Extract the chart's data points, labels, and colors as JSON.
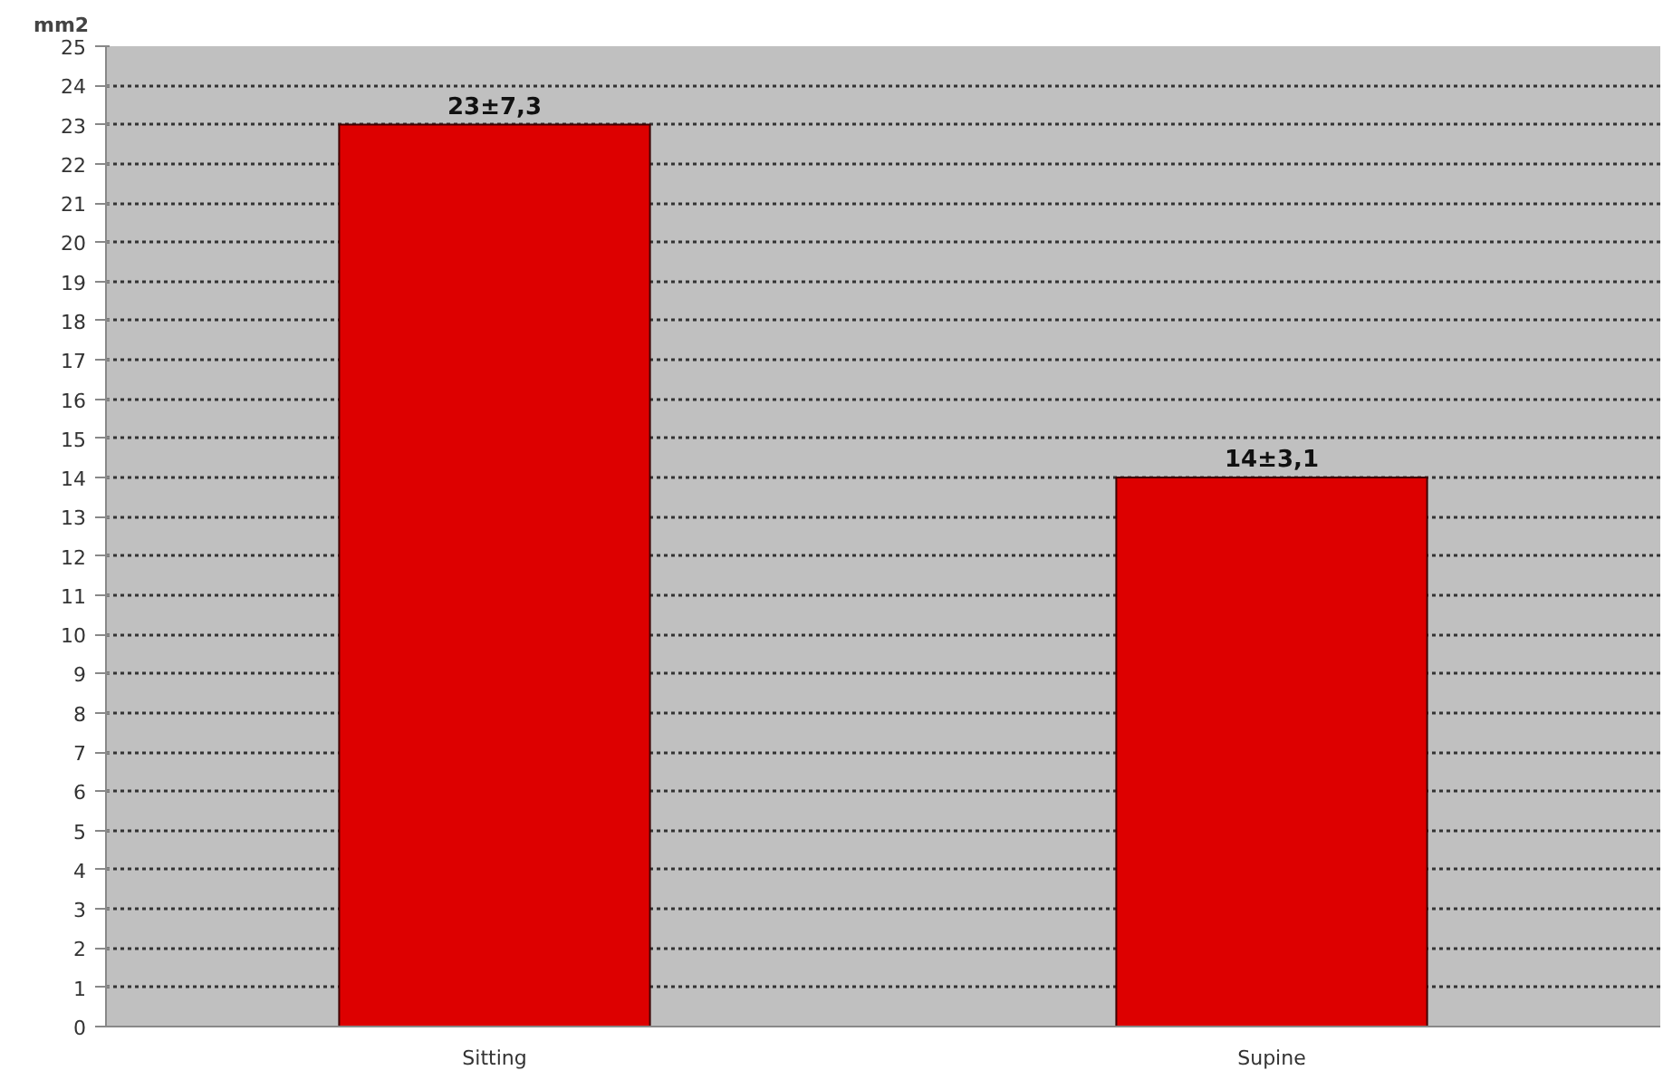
{
  "chart_data": {
    "type": "bar",
    "ylabel": "mm2",
    "categories": [
      "Sitting",
      "Supine"
    ],
    "values": [
      23,
      14
    ],
    "value_labels": [
      "23±7,3",
      "14±3,1"
    ],
    "color": "#dd0000",
    "ylim": [
      0,
      25
    ],
    "yticks": [
      0,
      1,
      2,
      3,
      4,
      5,
      6,
      7,
      8,
      9,
      10,
      11,
      12,
      13,
      14,
      15,
      16,
      17,
      18,
      19,
      20,
      21,
      22,
      23,
      24,
      25
    ],
    "grid": "y"
  }
}
